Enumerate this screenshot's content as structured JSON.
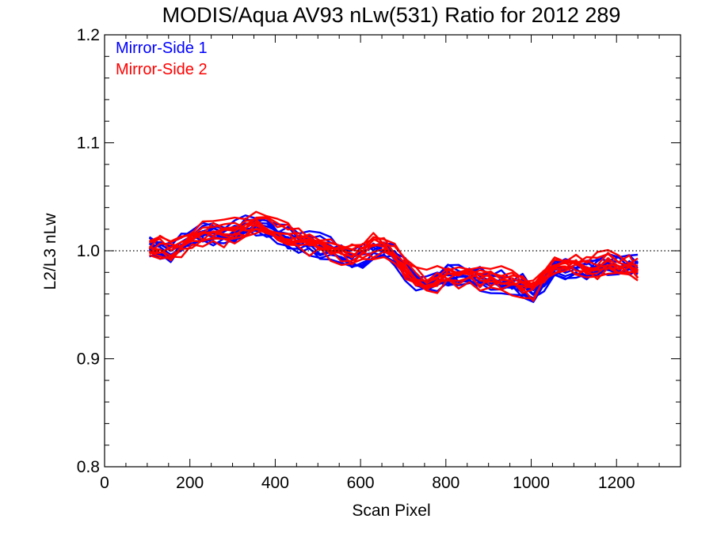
{
  "chart_data": {
    "type": "line",
    "title": "MODIS/Aqua AV93 nLw(531) Ratio for 2012 289",
    "xlabel": "Scan Pixel",
    "ylabel": "L2/L3 nLw",
    "xlim": [
      0,
      1350
    ],
    "ylim": [
      0.8,
      1.2
    ],
    "x_ticks": [
      0,
      200,
      400,
      600,
      800,
      1000,
      1200
    ],
    "x_tick_labels": [
      "0",
      "200",
      "400",
      "600",
      "800",
      "1000",
      "1200"
    ],
    "y_ticks": [
      0.8,
      0.9,
      1.0,
      1.1,
      1.2
    ],
    "y_tick_labels": [
      "0.8",
      "0.9",
      "1.0",
      "1.1",
      "1.2"
    ],
    "x_minor_step": 50,
    "y_minor_step": 0.02,
    "reference_line": {
      "y": 1.0,
      "style": "dotted",
      "color": "#000000"
    },
    "legend": {
      "position": "top-left",
      "entries": [
        {
          "label": "Mirror-Side 1",
          "color": "#0000ff"
        },
        {
          "label": "Mirror-Side 2",
          "color": "#ff0000"
        }
      ]
    },
    "curve_count_per_series": 10,
    "x": [
      105,
      130,
      155,
      180,
      205,
      230,
      255,
      280,
      305,
      330,
      355,
      380,
      405,
      430,
      455,
      480,
      505,
      530,
      555,
      580,
      605,
      630,
      655,
      680,
      705,
      730,
      755,
      780,
      805,
      830,
      855,
      880,
      905,
      930,
      955,
      980,
      1005,
      1030,
      1055,
      1080,
      1105,
      1130,
      1155,
      1180,
      1205,
      1230,
      1250
    ],
    "series": [
      {
        "name": "Mirror-Side 1",
        "color": "#0000ff",
        "values": [
          1.005,
          1.002,
          1.0,
          1.007,
          1.012,
          1.015,
          1.016,
          1.014,
          1.017,
          1.02,
          1.023,
          1.022,
          1.018,
          1.013,
          1.008,
          1.006,
          1.004,
          1.0,
          0.997,
          0.992,
          0.996,
          1.0,
          1.001,
          0.995,
          0.982,
          0.972,
          0.968,
          0.974,
          0.976,
          0.978,
          0.977,
          0.974,
          0.972,
          0.97,
          0.968,
          0.966,
          0.958,
          0.97,
          0.982,
          0.985,
          0.983,
          0.981,
          0.984,
          0.987,
          0.985,
          0.986,
          0.984
        ]
      },
      {
        "name": "Mirror-Side 2",
        "color": "#ff0000",
        "values": [
          1.0,
          1.002,
          0.999,
          1.006,
          1.012,
          1.014,
          1.017,
          1.016,
          1.018,
          1.021,
          1.024,
          1.022,
          1.019,
          1.015,
          1.01,
          1.008,
          1.005,
          1.002,
          1.0,
          0.997,
          1.001,
          1.004,
          1.003,
          0.996,
          0.984,
          0.975,
          0.97,
          0.974,
          0.977,
          0.978,
          0.977,
          0.976,
          0.975,
          0.973,
          0.971,
          0.968,
          0.965,
          0.975,
          0.985,
          0.988,
          0.986,
          0.985,
          0.986,
          0.988,
          0.987,
          0.986,
          0.982
        ]
      }
    ]
  }
}
